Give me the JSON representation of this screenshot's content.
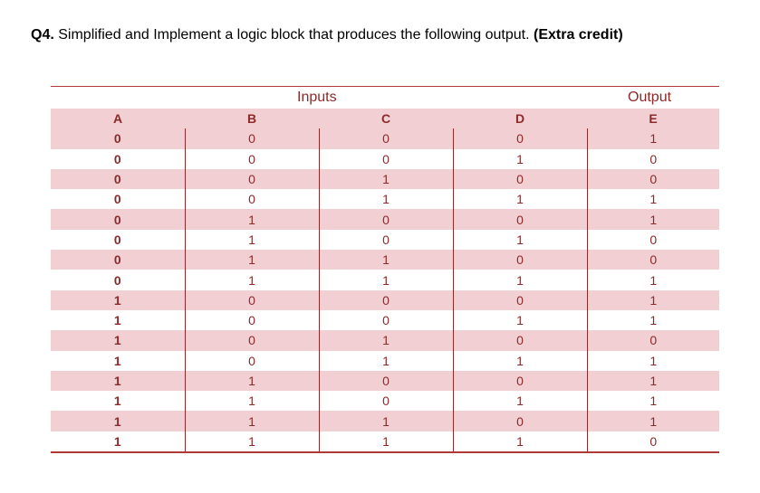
{
  "question": {
    "number": "Q4.",
    "text": " Simplified and Implement a logic block that produces the following output. ",
    "extra": "(Extra credit)"
  },
  "table": {
    "group_inputs": "Inputs",
    "group_output": "Output",
    "headers": [
      "A",
      "B",
      "C",
      "D",
      "E"
    ],
    "rows": [
      [
        "0",
        "0",
        "0",
        "0",
        "1"
      ],
      [
        "0",
        "0",
        "0",
        "1",
        "0"
      ],
      [
        "0",
        "0",
        "1",
        "0",
        "0"
      ],
      [
        "0",
        "0",
        "1",
        "1",
        "1"
      ],
      [
        "0",
        "1",
        "0",
        "0",
        "1"
      ],
      [
        "0",
        "1",
        "0",
        "1",
        "0"
      ],
      [
        "0",
        "1",
        "1",
        "0",
        "0"
      ],
      [
        "0",
        "1",
        "1",
        "1",
        "1"
      ],
      [
        "1",
        "0",
        "0",
        "0",
        "1"
      ],
      [
        "1",
        "0",
        "0",
        "1",
        "1"
      ],
      [
        "1",
        "0",
        "1",
        "0",
        "0"
      ],
      [
        "1",
        "0",
        "1",
        "1",
        "1"
      ],
      [
        "1",
        "1",
        "0",
        "0",
        "1"
      ],
      [
        "1",
        "1",
        "0",
        "1",
        "1"
      ],
      [
        "1",
        "1",
        "1",
        "0",
        "1"
      ],
      [
        "1",
        "1",
        "1",
        "1",
        "0"
      ]
    ]
  },
  "colors": {
    "accent": "#8b2a2a",
    "row_shade": "#f2cfd3"
  }
}
